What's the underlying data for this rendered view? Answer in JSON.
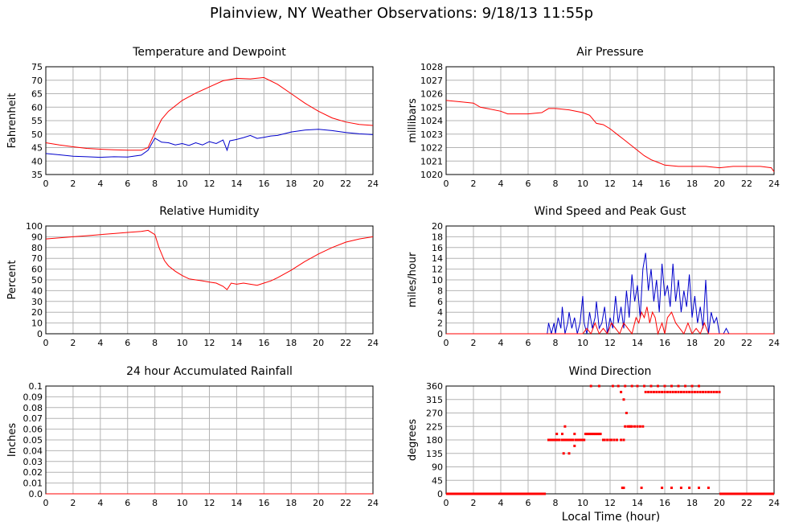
{
  "title": "Plainview, NY Weather Observations: 9/18/13 11:55p",
  "x_axis_label": "Local Time (hour)",
  "colors": {
    "red": "#ff0000",
    "blue": "#0000cc",
    "grid": "#b4b4b4",
    "axis": "#000000"
  },
  "chart_data": [
    {
      "id": "temperature",
      "type": "line",
      "title": "Temperature and Dewpoint",
      "ylabel": "Fahrenheit",
      "xlabel": "",
      "xlim": [
        0,
        24
      ],
      "ylim": [
        35,
        75
      ],
      "x_ticks": [
        0,
        2,
        4,
        6,
        8,
        10,
        12,
        14,
        16,
        18,
        20,
        22,
        24
      ],
      "y_ticks": [
        35,
        40,
        45,
        50,
        55,
        60,
        65,
        70,
        75
      ],
      "grid": true,
      "series": [
        {
          "color": "red",
          "x": [
            0,
            1,
            2,
            3,
            4,
            5,
            6,
            7,
            7.5,
            8,
            8.5,
            9,
            10,
            11,
            12,
            13,
            14,
            15,
            16,
            17,
            18,
            19,
            20,
            21,
            22,
            23,
            24
          ],
          "values": [
            46.8,
            46.0,
            45.3,
            44.7,
            44.4,
            44.2,
            44.0,
            44.0,
            45.0,
            50.5,
            55.5,
            58.5,
            62.5,
            65.2,
            67.5,
            69.8,
            70.7,
            70.5,
            71.0,
            68.5,
            65.0,
            61.5,
            58.5,
            56.0,
            54.5,
            53.6,
            53.2
          ]
        },
        {
          "color": "blue",
          "x": [
            0,
            1,
            2,
            3,
            4,
            5,
            6,
            7,
            7.5,
            8,
            8.5,
            9,
            9.5,
            10,
            10.5,
            11,
            11.5,
            12,
            12.5,
            13,
            13.3,
            13.5,
            14,
            14.5,
            15,
            15.5,
            16,
            16.5,
            17,
            18,
            19,
            20,
            21,
            22,
            23,
            24
          ],
          "values": [
            42.8,
            42.3,
            41.8,
            41.6,
            41.4,
            41.6,
            41.5,
            42.2,
            44.0,
            48.5,
            47.0,
            46.8,
            46.0,
            46.5,
            45.8,
            46.8,
            46.0,
            47.2,
            46.5,
            47.8,
            44.0,
            47.5,
            48.0,
            48.7,
            49.5,
            48.4,
            48.8,
            49.3,
            49.5,
            50.8,
            51.5,
            51.8,
            51.3,
            50.6,
            50.1,
            49.8
          ]
        }
      ]
    },
    {
      "id": "pressure",
      "type": "line",
      "title": "Air Pressure",
      "ylabel": "millibars",
      "xlabel": "",
      "xlim": [
        0,
        24
      ],
      "ylim": [
        1020,
        1028
      ],
      "x_ticks": [
        0,
        2,
        4,
        6,
        8,
        10,
        12,
        14,
        16,
        18,
        20,
        22,
        24
      ],
      "y_ticks": [
        1020,
        1021,
        1022,
        1023,
        1024,
        1025,
        1026,
        1027,
        1028
      ],
      "grid": true,
      "series": [
        {
          "color": "red",
          "x": [
            0,
            1,
            2,
            2.5,
            3,
            4,
            4.5,
            5,
            6,
            7,
            7.5,
            8,
            9,
            10,
            10.5,
            11,
            11.5,
            12,
            12.5,
            13,
            13.5,
            14,
            14.5,
            15,
            15.5,
            16,
            17,
            18,
            19,
            20,
            21,
            22,
            23,
            23.8,
            24
          ],
          "values": [
            1025.5,
            1025.4,
            1025.3,
            1025.0,
            1024.9,
            1024.7,
            1024.5,
            1024.5,
            1024.5,
            1024.6,
            1024.9,
            1024.9,
            1024.8,
            1024.6,
            1024.4,
            1023.8,
            1023.7,
            1023.4,
            1023.0,
            1022.6,
            1022.2,
            1021.8,
            1021.4,
            1021.1,
            1020.9,
            1020.7,
            1020.6,
            1020.6,
            1020.6,
            1020.5,
            1020.6,
            1020.6,
            1020.6,
            1020.5,
            1020.2
          ]
        }
      ]
    },
    {
      "id": "humidity",
      "type": "line",
      "title": "Relative Humidity",
      "ylabel": "Percent",
      "xlabel": "",
      "xlim": [
        0,
        24
      ],
      "ylim": [
        0,
        100
      ],
      "x_ticks": [
        0,
        2,
        4,
        6,
        8,
        10,
        12,
        14,
        16,
        18,
        20,
        22,
        24
      ],
      "y_ticks": [
        0,
        10,
        20,
        30,
        40,
        50,
        60,
        70,
        80,
        90,
        100
      ],
      "grid": true,
      "series": [
        {
          "color": "red",
          "x": [
            0,
            1,
            2,
            3,
            4,
            5,
            6,
            7,
            7.5,
            8,
            8.3,
            8.7,
            9,
            9.5,
            10,
            10.5,
            11,
            11.5,
            12,
            12.5,
            13,
            13.3,
            13.6,
            14,
            14.5,
            15,
            15.5,
            16,
            16.5,
            17,
            18,
            19,
            20,
            21,
            22,
            23,
            24
          ],
          "values": [
            88,
            89,
            90,
            91,
            92,
            93,
            94,
            95,
            96,
            92,
            80,
            68,
            63,
            58,
            54,
            51,
            50,
            49,
            48,
            47,
            44,
            41,
            47,
            46,
            47,
            46,
            45,
            47,
            49,
            52,
            59,
            67,
            74,
            80,
            85,
            88,
            90
          ]
        }
      ]
    },
    {
      "id": "wind-speed",
      "type": "line",
      "title": "Wind Speed and Peak Gust",
      "ylabel": "miles/hour",
      "xlabel": "",
      "xlim": [
        0,
        24
      ],
      "ylim": [
        0,
        20
      ],
      "x_ticks": [
        0,
        2,
        4,
        6,
        8,
        10,
        12,
        14,
        16,
        18,
        20,
        22,
        24
      ],
      "y_ticks": [
        0,
        2,
        4,
        6,
        8,
        10,
        12,
        14,
        16,
        18,
        20
      ],
      "grid": true,
      "series": [
        {
          "color": "blue",
          "x": [
            0,
            7.4,
            7.5,
            7.7,
            7.9,
            8.0,
            8.2,
            8.4,
            8.5,
            8.7,
            8.9,
            9.0,
            9.2,
            9.4,
            9.6,
            9.8,
            10.0,
            10.1,
            10.3,
            10.5,
            10.7,
            10.9,
            11.0,
            11.2,
            11.4,
            11.6,
            11.8,
            12.0,
            12.2,
            12.4,
            12.6,
            12.8,
            13.0,
            13.2,
            13.4,
            13.6,
            13.8,
            14.0,
            14.2,
            14.4,
            14.6,
            14.8,
            15.0,
            15.2,
            15.4,
            15.6,
            15.8,
            16.0,
            16.2,
            16.4,
            16.6,
            16.8,
            17.0,
            17.2,
            17.4,
            17.6,
            17.8,
            18.0,
            18.2,
            18.4,
            18.6,
            18.8,
            19.0,
            19.2,
            19.4,
            19.6,
            19.8,
            20.0,
            20.3,
            20.5,
            20.7,
            24
          ],
          "values": [
            0,
            0,
            2,
            0,
            2,
            0,
            3,
            1,
            5,
            0,
            2,
            4,
            1,
            3,
            0,
            2,
            7,
            2,
            0,
            4,
            1,
            3,
            6,
            1,
            2,
            5,
            0,
            3,
            1,
            7,
            2,
            5,
            1,
            8,
            3,
            11,
            6,
            9,
            3,
            12,
            15,
            8,
            12,
            6,
            10,
            4,
            13,
            7,
            9,
            5,
            13,
            6,
            10,
            4,
            8,
            5,
            11,
            3,
            7,
            2,
            5,
            1,
            10,
            0,
            4,
            2,
            3,
            0,
            0,
            1,
            0,
            0
          ]
        },
        {
          "color": "red",
          "x": [
            0,
            10.0,
            10.3,
            10.6,
            10.9,
            11.2,
            11.5,
            11.8,
            12.1,
            12.4,
            12.7,
            13.0,
            13.3,
            13.6,
            13.9,
            14.1,
            14.3,
            14.5,
            14.7,
            14.9,
            15.1,
            15.3,
            15.5,
            15.8,
            16.0,
            16.2,
            16.5,
            16.8,
            17.1,
            17.4,
            17.7,
            18.0,
            18.3,
            18.6,
            18.9,
            19.2,
            19.5,
            24
          ],
          "values": [
            0,
            0,
            1,
            0,
            2,
            0,
            1,
            0,
            2,
            1,
            0,
            2,
            1,
            0,
            3,
            2,
            4,
            3,
            5,
            2,
            4,
            3,
            0,
            2,
            0,
            3,
            4,
            2,
            1,
            0,
            2,
            0,
            1,
            0,
            2,
            0,
            0,
            0
          ]
        }
      ]
    },
    {
      "id": "rainfall",
      "type": "line",
      "title": "24 hour Accumulated Rainfall",
      "ylabel": "Inches",
      "xlabel": "",
      "xlim": [
        0,
        24
      ],
      "ylim": [
        0,
        0.1
      ],
      "x_ticks": [
        0,
        2,
        4,
        6,
        8,
        10,
        12,
        14,
        16,
        18,
        20,
        22,
        24
      ],
      "y_ticks": [
        0.0,
        0.01,
        0.02,
        0.03,
        0.04,
        0.05,
        0.06,
        0.07,
        0.08,
        0.09,
        0.1
      ],
      "y_tick_labels": [
        "0.0",
        "0.01",
        "0.02",
        "0.03",
        "0.04",
        "0.05",
        "0.06",
        "0.07",
        "0.08",
        "0.09",
        "0.1"
      ],
      "grid": true,
      "series": [
        {
          "color": "red",
          "x": [
            0,
            24
          ],
          "values": [
            0,
            0
          ]
        }
      ]
    },
    {
      "id": "wind-direction",
      "type": "scatter",
      "title": "Wind Direction",
      "ylabel": "degrees",
      "xlabel": "Local Time (hour)",
      "xlim": [
        0,
        24
      ],
      "ylim": [
        0,
        360
      ],
      "x_ticks": [
        0,
        2,
        4,
        6,
        8,
        10,
        12,
        14,
        16,
        18,
        20,
        22,
        24
      ],
      "y_ticks": [
        0,
        45,
        90,
        135,
        180,
        225,
        270,
        315,
        360
      ],
      "grid": true,
      "series": [
        {
          "color": "red",
          "x": [
            7.5,
            7.6,
            7.7,
            7.8,
            7.9,
            8.0,
            8.1,
            8.2,
            8.3,
            8.5,
            8.6,
            8.7,
            8.8,
            8.9,
            9.0,
            9.1,
            9.2,
            9.3,
            9.5,
            9.6,
            9.7,
            9.8,
            9.9,
            10.0,
            10.1,
            10.2,
            10.3,
            10.4,
            10.5,
            10.6,
            10.7,
            10.8,
            10.9,
            11.0,
            11.1,
            11.2,
            11.3,
            11.5,
            11.6,
            11.8,
            12.0,
            12.1,
            12.3,
            12.5,
            12.8,
            13.0,
            13.1,
            13.3,
            13.5,
            13.6,
            13.8,
            14.0,
            14.2,
            14.4,
            14.6,
            14.8,
            15.0,
            15.2,
            15.4,
            15.6,
            15.8,
            16.0,
            16.2,
            16.4,
            16.6,
            16.8,
            17.0,
            17.2,
            17.4,
            17.6,
            17.8,
            18.0,
            18.2,
            18.4,
            18.6,
            18.8,
            19.0,
            19.2,
            19.4,
            19.6,
            19.8,
            20.0,
            10.6,
            11.2,
            12.2,
            12.6,
            13.1,
            13.6,
            14.0,
            14.5,
            15.0,
            15.5,
            16.0,
            16.5,
            17.0,
            17.5,
            18.0,
            18.5,
            12.8,
            13.0,
            13.2,
            13.4,
            14.3,
            15.8,
            16.5,
            17.2,
            17.8,
            18.5,
            19.2,
            8.5,
            9.6,
            12.9,
            13.0,
            8.6,
            9.0,
            8.1,
            9.4,
            8.7,
            9.4
          ],
          "values": [
            180,
            180,
            180,
            180,
            180,
            180,
            180,
            180,
            180,
            180,
            180,
            180,
            180,
            180,
            180,
            180,
            180,
            180,
            180,
            180,
            180,
            180,
            180,
            180,
            180,
            200,
            200,
            200,
            200,
            200,
            200,
            200,
            200,
            200,
            200,
            200,
            200,
            180,
            180,
            180,
            180,
            180,
            180,
            180,
            180,
            180,
            225,
            225,
            225,
            225,
            225,
            225,
            225,
            225,
            340,
            340,
            340,
            340,
            340,
            340,
            340,
            340,
            340,
            340,
            340,
            340,
            340,
            340,
            340,
            340,
            340,
            340,
            340,
            340,
            340,
            340,
            340,
            340,
            340,
            340,
            340,
            340,
            360,
            360,
            360,
            360,
            360,
            360,
            360,
            360,
            360,
            360,
            360,
            360,
            360,
            360,
            360,
            360,
            340,
            315,
            270,
            225,
            20,
            20,
            20,
            20,
            20,
            20,
            20,
            200,
            180,
            20,
            20,
            135,
            135,
            200,
            160,
            225,
            200
          ]
        },
        {
          "color": "red",
          "x": [
            0,
            7.3
          ],
          "values": [
            0,
            0
          ],
          "style": "baseline"
        },
        {
          "color": "red",
          "x": [
            20.0,
            24
          ],
          "values": [
            0,
            0
          ],
          "style": "baseline"
        }
      ]
    }
  ]
}
